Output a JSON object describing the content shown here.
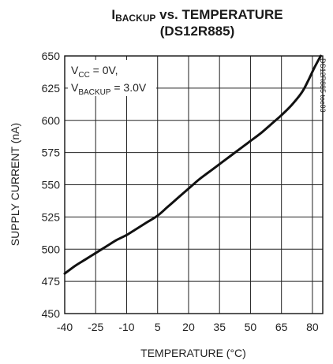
{
  "chart_data": {
    "type": "line",
    "title": {
      "line1_prefix": "I",
      "line1_sub": "BACKUP",
      "line1_rest": " vs. TEMPERATURE",
      "line2": "(DS12R885)"
    },
    "xlabel": "TEMPERATURE (°C)",
    "ylabel": "SUPPLY CURRENT (nA)",
    "xlim": [
      -40,
      85
    ],
    "ylim": [
      450,
      650
    ],
    "x_ticks": [
      -40,
      -25,
      -10,
      5,
      20,
      35,
      50,
      65,
      80
    ],
    "y_ticks": [
      450,
      475,
      500,
      525,
      550,
      575,
      600,
      625,
      650
    ],
    "grid": true,
    "annotation": {
      "line1_v": "V",
      "line1_sub": "CC",
      "line1_rest": " = 0V,",
      "line2_v": "V",
      "line2_sub": "BACKUP",
      "line2_rest": " = 3.0V"
    },
    "figure_code": "DS12R885 toc03",
    "series": [
      {
        "x": [
          -40,
          -35,
          -30,
          -25,
          -20,
          -15,
          -10,
          -5,
          0,
          5,
          10,
          15,
          20,
          25,
          30,
          35,
          40,
          45,
          50,
          55,
          60,
          65,
          70,
          75,
          78,
          81,
          84
        ],
        "values": [
          481,
          487,
          492,
          497,
          502,
          507,
          511,
          516,
          521,
          526,
          533,
          540,
          547,
          554,
          560,
          566,
          572,
          578,
          584,
          590,
          597,
          604,
          612,
          622,
          631,
          641,
          650
        ]
      }
    ]
  }
}
